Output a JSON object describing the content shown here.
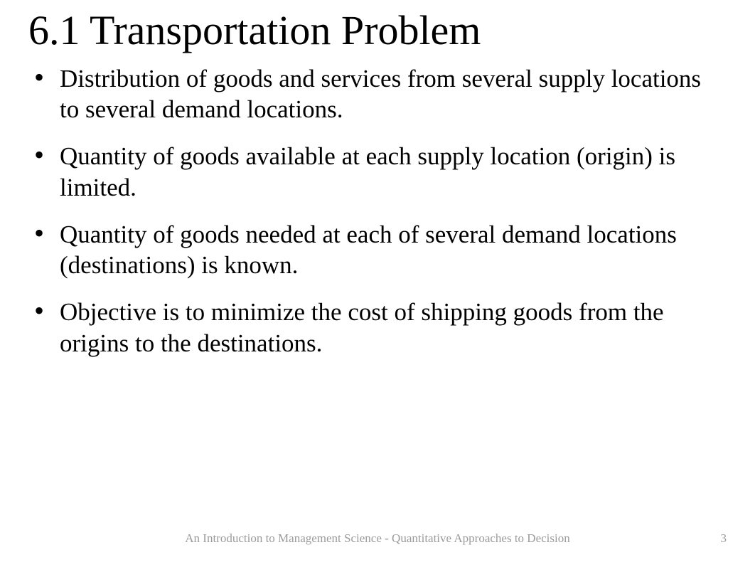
{
  "slide": {
    "title": "6.1 Transportation Problem",
    "bullets": [
      "Distribution of goods and services from several supply locations to several demand locations.",
      "Quantity of goods available at each supply location (origin) is limited.",
      "Quantity of goods needed at each of several demand locations (destinations) is known.",
      "Objective is to minimize the cost of shipping goods from the origins to the destinations."
    ],
    "footer_text": "An Introduction to Management Science - Quantitative Approaches to Decision",
    "page_number": "3"
  },
  "style": {
    "background_color": "#ffffff",
    "title_color": "#000000",
    "title_fontsize": 58,
    "body_color": "#000000",
    "body_fontsize": 35,
    "footer_color": "#9b9b9b",
    "footer_fontsize": 17,
    "font_family": "Times New Roman"
  }
}
